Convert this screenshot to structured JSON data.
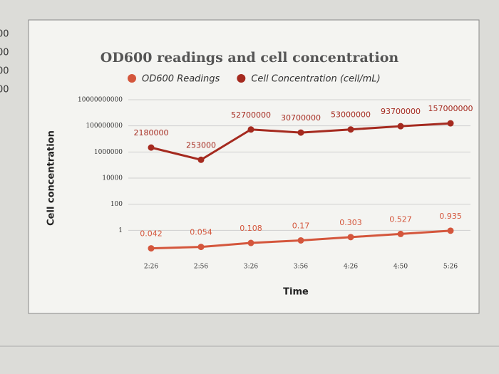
{
  "background_labels": [
    "00",
    "00",
    "00",
    "00"
  ],
  "chart_data": {
    "type": "line",
    "title": "OD600 readings and cell concentration",
    "y_label": "Cell concentration",
    "x_label": "Time",
    "categories": [
      "2:26",
      "2:56",
      "3:26",
      "3:56",
      "4:26",
      "4:50",
      "5:26"
    ],
    "series": [
      {
        "name": "OD600 Readings",
        "color": "#d4563c",
        "values": [
          0.042,
          0.054,
          0.108,
          0.17,
          0.303,
          0.527,
          0.935
        ]
      },
      {
        "name": "Cell Concentration (cell/mL)",
        "color": "#a52a1f",
        "values": [
          2180000,
          253000,
          52700000,
          30700000,
          53000000,
          93700000,
          157000000
        ]
      }
    ],
    "log_scale": true,
    "ylim": [
      0.01,
      10000000000
    ],
    "yticks": [
      1,
      100,
      10000,
      1000000,
      100000000,
      10000000000
    ],
    "grid": true
  }
}
